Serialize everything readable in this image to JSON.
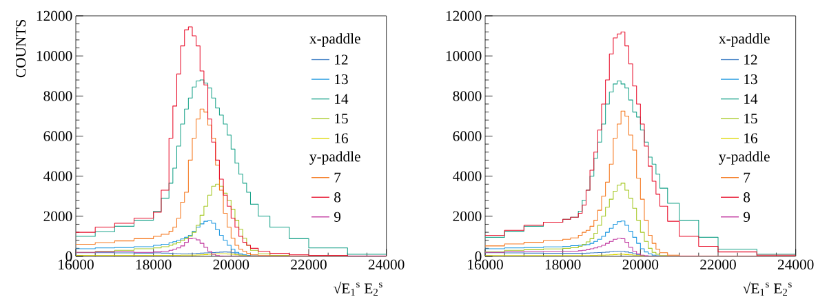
{
  "chart_data": [
    {
      "type": "histogram",
      "ylabel": "COUNTS",
      "xlabel": "√E$_{1}$$^{s}$ E$_{2}$$^{s}$",
      "xlim": [
        16000,
        24000
      ],
      "ylim": [
        0,
        12000
      ],
      "xticks": [
        16000,
        18000,
        20000,
        22000,
        24000
      ],
      "yticks": [
        0,
        2000,
        4000,
        6000,
        8000,
        10000,
        12000
      ],
      "legend": "right",
      "annotations": [
        "x-paddle",
        "y-paddle"
      ],
      "bins": [
        16000,
        16500,
        17000,
        17500,
        18000,
        18200,
        18400,
        18500,
        18600,
        18700,
        18800,
        18900,
        19000,
        19100,
        19200,
        19300,
        19400,
        19500,
        19600,
        19700,
        19800,
        19900,
        20000,
        20100,
        20200,
        20300,
        20400,
        20500,
        20700,
        21000,
        21500,
        22000,
        23000,
        24000
      ],
      "series": [
        {
          "name": "12",
          "color": "#3f7fc4",
          "values": [
            180,
            180,
            170,
            160,
            170,
            160,
            150,
            140,
            130,
            120,
            120,
            130,
            140,
            150,
            160,
            170,
            180,
            190,
            200,
            210,
            220,
            210,
            180,
            120,
            70,
            40,
            20,
            0,
            0,
            0,
            0,
            0,
            0
          ]
        },
        {
          "name": "13",
          "color": "#1a96e0",
          "values": [
            380,
            420,
            440,
            480,
            550,
            600,
            680,
            730,
            800,
            870,
            950,
            1050,
            1250,
            1450,
            1620,
            1750,
            1780,
            1650,
            1330,
            1050,
            800,
            550,
            350,
            200,
            130,
            80,
            50,
            30,
            0,
            0,
            0,
            0,
            0
          ]
        },
        {
          "name": "14",
          "color": "#1aa38a",
          "values": [
            1000,
            1230,
            1500,
            1800,
            2250,
            2900,
            3650,
            4400,
            5500,
            6600,
            7350,
            7900,
            8450,
            8750,
            8800,
            8650,
            8400,
            7900,
            7400,
            7050,
            6600,
            6050,
            5350,
            4650,
            4100,
            3650,
            3200,
            2600,
            2000,
            1450,
            880,
            420,
            100
          ]
        },
        {
          "name": "15",
          "color": "#a5c823",
          "values": [
            200,
            250,
            300,
            380,
            420,
            480,
            550,
            620,
            700,
            780,
            880,
            1000,
            1200,
            1550,
            2050,
            2500,
            3050,
            3500,
            3600,
            3500,
            3150,
            2800,
            2350,
            1800,
            1350,
            900,
            550,
            300,
            120,
            50,
            20,
            0,
            0
          ]
        },
        {
          "name": "16",
          "color": "#dcd800",
          "values": [
            50,
            50,
            50,
            50,
            50,
            50,
            50,
            50,
            50,
            60,
            60,
            60,
            60,
            70,
            80,
            90,
            100,
            110,
            120,
            120,
            120,
            110,
            100,
            80,
            60,
            40,
            20,
            10,
            0,
            0,
            0,
            0,
            0
          ]
        },
        {
          "name": "7",
          "color": "#f5781e",
          "values": [
            600,
            680,
            770,
            880,
            1000,
            1100,
            1250,
            1450,
            1900,
            2700,
            3200,
            4800,
            5900,
            6850,
            7350,
            7200,
            6550,
            5900,
            4550,
            3300,
            2150,
            1450,
            900,
            550,
            350,
            250,
            150,
            80,
            40,
            10,
            0,
            0,
            0
          ]
        },
        {
          "name": "8",
          "color": "#e8102c",
          "values": [
            1200,
            1450,
            1650,
            1900,
            2200,
            3300,
            5900,
            7500,
            9100,
            10500,
            11300,
            11450,
            11000,
            10500,
            9250,
            8550,
            6850,
            5700,
            4800,
            3850,
            3050,
            2500,
            1900,
            1450,
            1000,
            700,
            550,
            400,
            250,
            150,
            80,
            50,
            20
          ]
        },
        {
          "name": "9",
          "color": "#c0359e",
          "values": [
            200,
            220,
            230,
            200,
            220,
            250,
            300,
            350,
            420,
            520,
            700,
            880,
            900,
            820,
            650,
            450,
            250,
            100,
            40,
            20,
            0,
            0,
            0,
            0,
            0,
            0,
            0,
            0,
            0,
            0,
            0,
            0,
            0
          ]
        }
      ]
    },
    {
      "type": "histogram",
      "xlabel": "√E$_{1}$$^{s}$ E$_{2}$$^{s}$",
      "xlim": [
        16000,
        24000
      ],
      "ylim": [
        0,
        12000
      ],
      "xticks": [
        16000,
        18000,
        20000,
        22000,
        24000
      ],
      "yticks": [
        0,
        2000,
        4000,
        6000,
        8000,
        10000,
        12000
      ],
      "legend": "right",
      "annotations": [
        "x-paddle",
        "y-paddle"
      ],
      "bins": [
        16000,
        16500,
        17000,
        17500,
        18000,
        18200,
        18400,
        18500,
        18600,
        18700,
        18800,
        18900,
        19000,
        19100,
        19200,
        19300,
        19400,
        19500,
        19600,
        19700,
        19800,
        19900,
        20000,
        20100,
        20200,
        20300,
        20400,
        20500,
        20700,
        21000,
        21500,
        22000,
        23000,
        24000
      ],
      "series": [
        {
          "name": "12",
          "color": "#3f7fc4",
          "values": [
            180,
            170,
            160,
            150,
            150,
            150,
            150,
            150,
            160,
            170,
            180,
            190,
            200,
            210,
            230,
            250,
            260,
            250,
            220,
            180,
            130,
            80,
            40,
            20,
            0,
            0,
            0,
            0,
            0,
            0,
            0,
            0,
            0
          ]
        },
        {
          "name": "13",
          "color": "#1a96e0",
          "values": [
            380,
            420,
            440,
            470,
            500,
            530,
            550,
            560,
            580,
            650,
            750,
            850,
            1000,
            1200,
            1400,
            1600,
            1730,
            1760,
            1550,
            1250,
            950,
            650,
            380,
            220,
            120,
            60,
            30,
            0,
            0,
            0,
            0,
            0,
            0
          ]
        },
        {
          "name": "14",
          "color": "#1aa38a",
          "values": [
            950,
            1250,
            1500,
            1700,
            1850,
            1950,
            2250,
            2800,
            3300,
            4000,
            4900,
            5700,
            6600,
            7600,
            8200,
            8600,
            8750,
            8600,
            8400,
            7800,
            7200,
            6950,
            6300,
            5700,
            4950,
            4600,
            4100,
            3400,
            2650,
            1800,
            950,
            350,
            100
          ]
        },
        {
          "name": "15",
          "color": "#a5c823",
          "values": [
            220,
            300,
            330,
            370,
            400,
            430,
            500,
            600,
            720,
            880,
            1150,
            1550,
            2000,
            2450,
            2850,
            3250,
            3550,
            3650,
            3300,
            2900,
            2400,
            1800,
            1200,
            750,
            400,
            200,
            100,
            40,
            0,
            0,
            0,
            0,
            0
          ]
        },
        {
          "name": "16",
          "color": "#dcd800",
          "values": [
            40,
            40,
            40,
            40,
            40,
            40,
            40,
            40,
            40,
            50,
            50,
            60,
            60,
            70,
            80,
            90,
            100,
            100,
            90,
            80,
            60,
            40,
            20,
            10,
            0,
            0,
            0,
            0,
            0,
            0,
            0,
            0,
            0
          ]
        },
        {
          "name": "7",
          "color": "#f5781e",
          "values": [
            520,
            620,
            700,
            780,
            850,
            920,
            1050,
            1200,
            1300,
            1500,
            1800,
            2300,
            3000,
            3700,
            4600,
            5900,
            6600,
            7250,
            7000,
            6050,
            5300,
            3900,
            2850,
            1800,
            1050,
            650,
            350,
            180,
            60,
            20,
            0,
            0,
            0
          ]
        },
        {
          "name": "8",
          "color": "#e8102c",
          "values": [
            1050,
            1300,
            1550,
            1700,
            1850,
            1950,
            2150,
            2550,
            3300,
            4300,
            5200,
            6300,
            7600,
            8800,
            10100,
            10900,
            11100,
            11200,
            10500,
            9600,
            8500,
            7600,
            6600,
            5500,
            4500,
            3750,
            3100,
            2500,
            1750,
            1000,
            500,
            220,
            60
          ]
        },
        {
          "name": "9",
          "color": "#c0359e",
          "values": [
            200,
            230,
            250,
            230,
            250,
            260,
            280,
            300,
            330,
            380,
            420,
            480,
            550,
            650,
            750,
            850,
            900,
            880,
            700,
            450,
            250,
            120,
            60,
            30,
            0,
            0,
            0,
            0,
            0,
            0,
            0,
            0,
            0
          ]
        }
      ]
    }
  ]
}
